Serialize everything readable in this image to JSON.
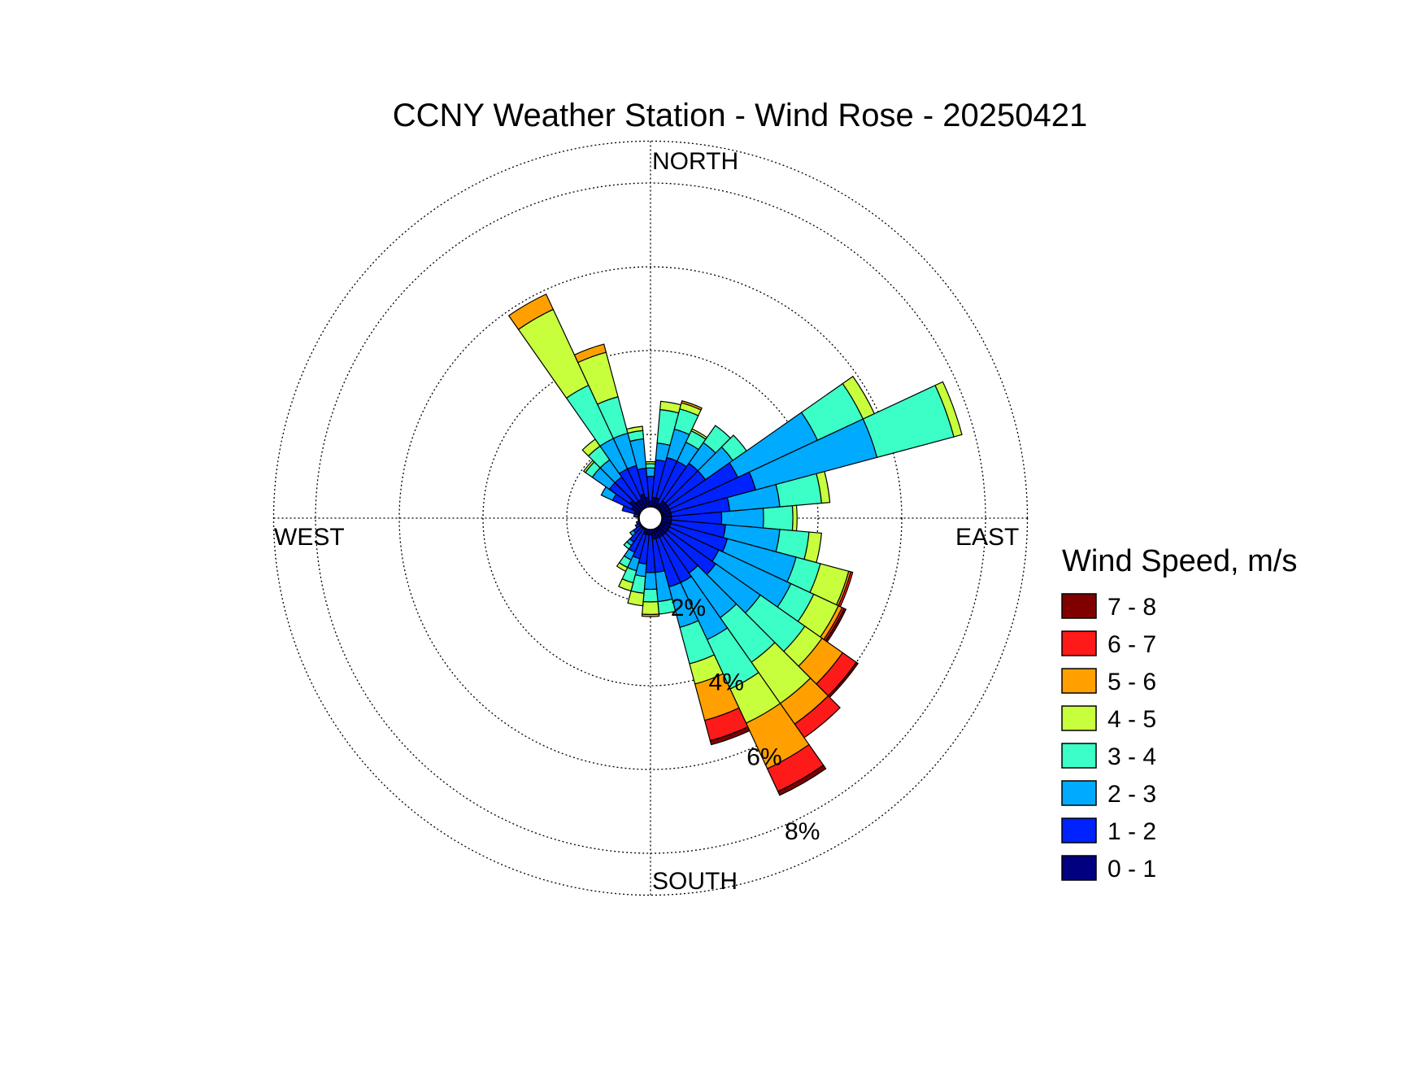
{
  "chart_data": {
    "type": "wind-rose",
    "title": "CCNY Weather Station - Wind Rose - 20250421",
    "direction_labels": {
      "north": "NORTH",
      "south": "SOUTH",
      "east": "EAST",
      "west": "WEST"
    },
    "radial_unit": "%",
    "radial_max": 9,
    "rings": [
      {
        "value": 2,
        "label": "2%"
      },
      {
        "value": 4,
        "label": "4%"
      },
      {
        "value": 6,
        "label": "6%"
      },
      {
        "value": 8,
        "label": "8%"
      }
    ],
    "grid": true,
    "legend": {
      "title": "Wind Speed, m/s",
      "placement": "right",
      "bins": [
        {
          "label": "7 - 8",
          "color": "#800000"
        },
        {
          "label": "6 - 7",
          "color": "#ff1a1a"
        },
        {
          "label": "5 - 6",
          "color": "#ffa000"
        },
        {
          "label": "4 - 5",
          "color": "#c8ff3c"
        },
        {
          "label": "3 - 4",
          "color": "#3cffc8"
        },
        {
          "label": "2 - 3",
          "color": "#00aaff"
        },
        {
          "label": "1 - 2",
          "color": "#0022ff"
        },
        {
          "label": "0 - 1",
          "color": "#000080"
        }
      ]
    },
    "speed_bins": [
      "0 - 1",
      "1 - 2",
      "2 - 3",
      "3 - 4",
      "4 - 5",
      "5 - 6",
      "6 - 7",
      "7 - 8"
    ],
    "bin_colors": [
      "#000080",
      "#0022ff",
      "#00aaff",
      "#3cffc8",
      "#c8ff3c",
      "#ffa000",
      "#ff1a1a",
      "#800000"
    ],
    "sector_width_deg": 10,
    "sectors": [
      {
        "direction_deg": 0,
        "cumulative_percent": [
          0.4,
          1.0,
          1.2,
          1.3,
          1.35
        ]
      },
      {
        "direction_deg": 10,
        "cumulative_percent": [
          0.5,
          1.4,
          1.8,
          2.6,
          2.8
        ]
      },
      {
        "direction_deg": 20,
        "cumulative_percent": [
          0.5,
          1.5,
          2.2,
          2.7,
          2.85,
          2.9
        ]
      },
      {
        "direction_deg": 30,
        "cumulative_percent": [
          0.4,
          1.5,
          2.0,
          2.3,
          2.35
        ]
      },
      {
        "direction_deg": 40,
        "cumulative_percent": [
          0.5,
          1.6,
          2.2,
          2.7
        ]
      },
      {
        "direction_deg": 50,
        "cumulative_percent": [
          0.5,
          1.6,
          2.4,
          2.8
        ]
      },
      {
        "direction_deg": 60,
        "cumulative_percent": [
          0.5,
          2.3,
          4.4,
          5.6,
          5.9
        ]
      },
      {
        "direction_deg": 70,
        "cumulative_percent": [
          0.5,
          2.6,
          5.6,
          7.5,
          7.7
        ]
      },
      {
        "direction_deg": 80,
        "cumulative_percent": [
          0.5,
          1.9,
          3.1,
          4.1,
          4.3
        ]
      },
      {
        "direction_deg": 90,
        "cumulative_percent": [
          0.5,
          1.7,
          2.7,
          3.4,
          3.5
        ]
      },
      {
        "direction_deg": 100,
        "cumulative_percent": [
          0.5,
          1.8,
          3.1,
          3.8,
          4.1
        ]
      },
      {
        "direction_deg": 110,
        "cumulative_percent": [
          0.5,
          1.9,
          3.6,
          4.2,
          4.9,
          4.95,
          5.0
        ]
      },
      {
        "direction_deg": 120,
        "cumulative_percent": [
          0.5,
          1.8,
          3.7,
          4.3,
          4.95,
          5.05,
          5.1,
          5.15
        ]
      },
      {
        "direction_deg": 130,
        "cumulative_percent": [
          0.5,
          1.9,
          3.2,
          4.5,
          5.0,
          5.6,
          6.0,
          6.05
        ]
      },
      {
        "direction_deg": 140,
        "cumulative_percent": [
          0.5,
          1.6,
          2.9,
          4.2,
          5.4,
          6.0,
          6.4
        ]
      },
      {
        "direction_deg": 150,
        "cumulative_percent": [
          0.5,
          1.7,
          3.2,
          4.5,
          5.4,
          6.6,
          7.2,
          7.3
        ]
      },
      {
        "direction_deg": 160,
        "cumulative_percent": [
          0.5,
          1.7,
          2.7,
          3.6,
          4.1,
          5.0,
          5.5,
          5.6
        ]
      },
      {
        "direction_deg": 170,
        "cumulative_percent": [
          0.5,
          1.3,
          2.0,
          2.3
        ]
      },
      {
        "direction_deg": 180,
        "cumulative_percent": [
          0.4,
          1.3,
          1.7,
          2.0,
          2.3,
          2.35
        ]
      },
      {
        "direction_deg": 190,
        "cumulative_percent": [
          0.4,
          1.1,
          1.4,
          1.8,
          2.1
        ]
      },
      {
        "direction_deg": 200,
        "cumulative_percent": [
          0.4,
          1.0,
          1.3,
          1.6,
          1.8
        ]
      },
      {
        "direction_deg": 210,
        "cumulative_percent": [
          0.3,
          0.9,
          1.1,
          1.3,
          1.4
        ]
      },
      {
        "direction_deg": 220,
        "cumulative_percent": [
          0.3,
          0.7,
          0.8,
          0.9
        ]
      },
      {
        "direction_deg": 230,
        "cumulative_percent": [
          0.3,
          0.5,
          0.6
        ]
      },
      {
        "direction_deg": 240,
        "cumulative_percent": [
          0.3,
          0.4
        ]
      },
      {
        "direction_deg": 250,
        "cumulative_percent": [
          0.3,
          0.35
        ]
      },
      {
        "direction_deg": 260,
        "cumulative_percent": [
          0.3
        ]
      },
      {
        "direction_deg": 270,
        "cumulative_percent": [
          0.3
        ]
      },
      {
        "direction_deg": 280,
        "cumulative_percent": [
          0.3,
          0.4
        ]
      },
      {
        "direction_deg": 290,
        "cumulative_percent": [
          0.4,
          0.7
        ]
      },
      {
        "direction_deg": 300,
        "cumulative_percent": [
          0.5,
          1.0,
          1.3
        ]
      },
      {
        "direction_deg": 310,
        "cumulative_percent": [
          0.6,
          1.2,
          1.7,
          1.9,
          1.95
        ]
      },
      {
        "direction_deg": 320,
        "cumulative_percent": [
          0.5,
          1.2,
          1.7,
          2.1,
          2.3
        ]
      },
      {
        "direction_deg": 330,
        "cumulative_percent": [
          0.5,
          1.3,
          2.1,
          3.5,
          5.5,
          5.9
        ]
      },
      {
        "direction_deg": 340,
        "cumulative_percent": [
          0.6,
          1.3,
          2.1,
          3.0,
          4.1,
          4.3
        ]
      },
      {
        "direction_deg": 350,
        "cumulative_percent": [
          0.5,
          1.2,
          1.9,
          2.1,
          2.2
        ]
      }
    ]
  }
}
